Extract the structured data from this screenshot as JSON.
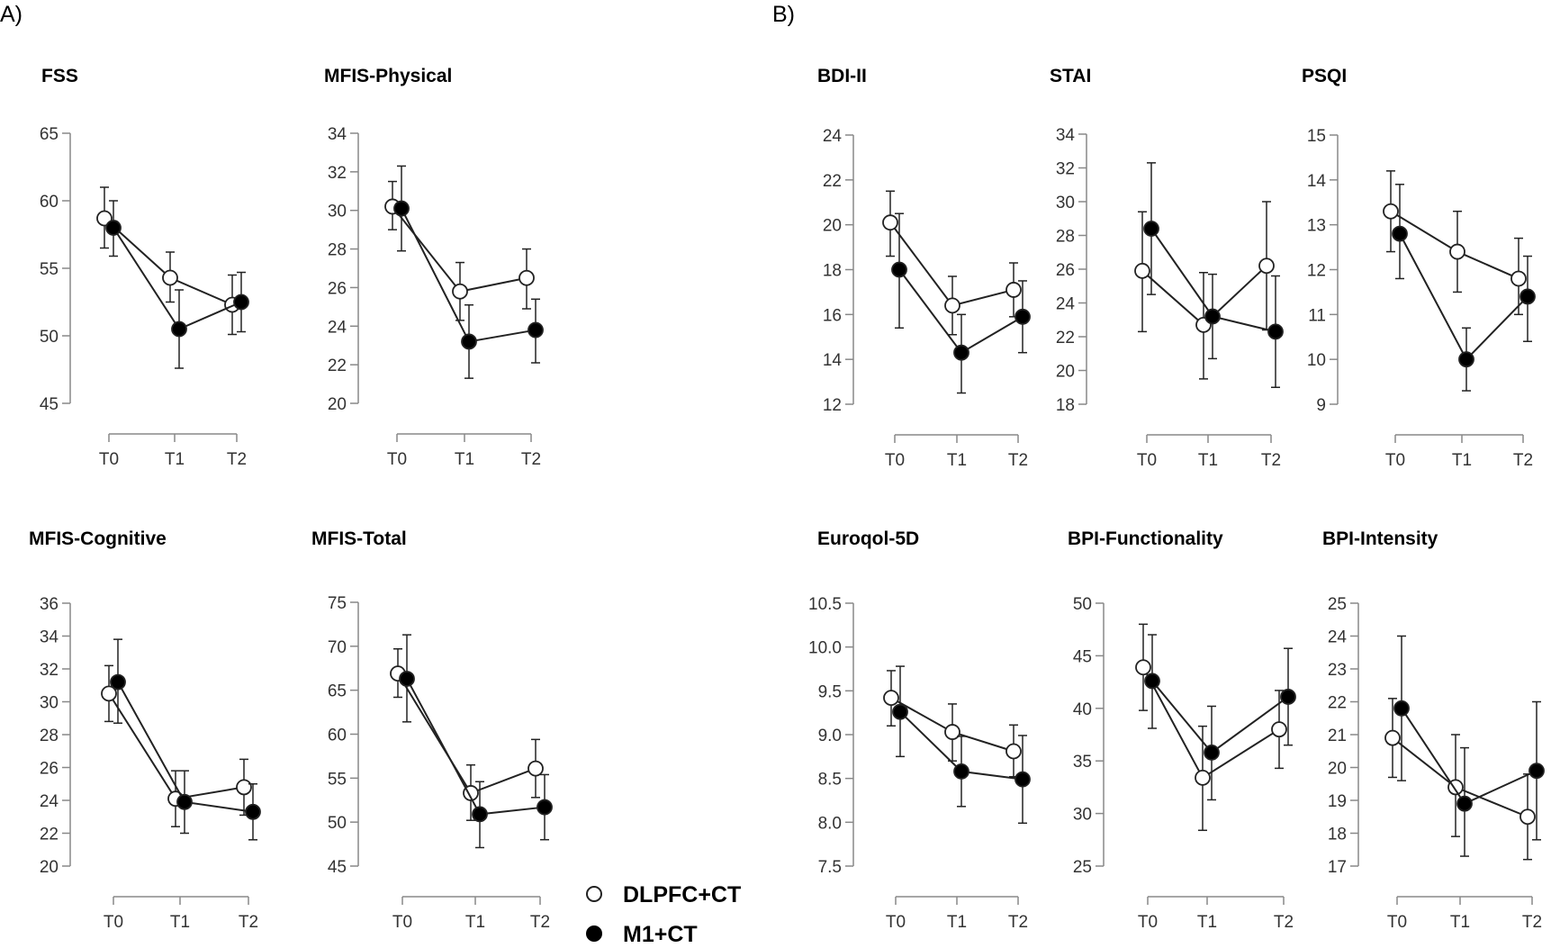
{
  "section_labels": [
    "A)",
    "B)"
  ],
  "legend": [
    {
      "label": "DLPFC+CT",
      "marker": "open-circle"
    },
    {
      "label": "M1+CT",
      "marker": "filled-circle"
    }
  ],
  "colors": {
    "line": "#222222",
    "axis": "#888888",
    "open_fill": "#ffffff",
    "filled_fill": "#000000"
  },
  "chart_data": [
    {
      "type": "line",
      "title": "FSS",
      "categories": [
        "T0",
        "T1",
        "T2"
      ],
      "yticks": [
        45,
        50,
        55,
        60,
        65
      ],
      "ylim": [
        45,
        65
      ],
      "series": [
        {
          "name": "DLPFC+CT",
          "values": [
            58.7,
            54.3,
            52.3
          ],
          "lower": [
            56.5,
            52.5,
            50.1
          ],
          "upper": [
            61.0,
            56.2,
            54.5
          ]
        },
        {
          "name": "M1+CT",
          "values": [
            58.0,
            50.5,
            52.5
          ],
          "lower": [
            55.9,
            47.6,
            50.3
          ],
          "upper": [
            60.0,
            53.4,
            54.7
          ]
        }
      ]
    },
    {
      "type": "line",
      "title": "MFIS-Physical",
      "categories": [
        "T0",
        "T1",
        "T2"
      ],
      "yticks": [
        20,
        22,
        24,
        26,
        28,
        30,
        32,
        34
      ],
      "ylim": [
        20,
        34
      ],
      "series": [
        {
          "name": "DLPFC+CT",
          "values": [
            30.2,
            25.8,
            26.5
          ],
          "lower": [
            29.0,
            24.3,
            24.9
          ],
          "upper": [
            31.5,
            27.3,
            28.0
          ]
        },
        {
          "name": "M1+CT",
          "values": [
            30.1,
            23.2,
            23.8
          ],
          "lower": [
            27.9,
            21.3,
            22.1
          ],
          "upper": [
            32.3,
            25.1,
            25.4
          ]
        }
      ]
    },
    {
      "type": "line",
      "title": "BDI-II",
      "categories": [
        "T0",
        "T1",
        "T2"
      ],
      "yticks": [
        12,
        14,
        16,
        18,
        20,
        22,
        24
      ],
      "ylim": [
        12,
        24
      ],
      "series": [
        {
          "name": "DLPFC+CT",
          "values": [
            20.1,
            16.4,
            17.1
          ],
          "lower": [
            18.6,
            15.1,
            15.9
          ],
          "upper": [
            21.5,
            17.7,
            18.3
          ]
        },
        {
          "name": "M1+CT",
          "values": [
            18.0,
            14.3,
            15.9
          ],
          "lower": [
            15.4,
            12.5,
            14.3
          ],
          "upper": [
            20.5,
            16.0,
            17.5
          ]
        }
      ]
    },
    {
      "type": "line",
      "title": "STAI",
      "categories": [
        "T0",
        "T1",
        "T2"
      ],
      "yticks": [
        18,
        20,
        22,
        24,
        26,
        28,
        30,
        32,
        34
      ],
      "ylim": [
        18,
        34
      ],
      "series": [
        {
          "name": "DLPFC+CT",
          "values": [
            25.9,
            22.7,
            26.2
          ],
          "lower": [
            22.3,
            19.5,
            22.4
          ],
          "upper": [
            29.4,
            25.8,
            30.0
          ]
        },
        {
          "name": "M1+CT",
          "values": [
            28.4,
            23.2,
            22.3
          ],
          "lower": [
            24.5,
            20.7,
            19.0
          ],
          "upper": [
            32.3,
            25.7,
            25.6
          ]
        }
      ]
    },
    {
      "type": "line",
      "title": "PSQI",
      "categories": [
        "T0",
        "T1",
        "T2"
      ],
      "yticks": [
        9,
        10,
        11,
        12,
        13,
        14,
        15
      ],
      "ylim": [
        9,
        15
      ],
      "series": [
        {
          "name": "DLPFC+CT",
          "values": [
            13.3,
            12.4,
            11.8
          ],
          "lower": [
            12.4,
            11.5,
            11.0
          ],
          "upper": [
            14.2,
            13.3,
            12.7
          ]
        },
        {
          "name": "M1+CT",
          "values": [
            12.8,
            10.0,
            11.4
          ],
          "lower": [
            11.8,
            9.3,
            10.4
          ],
          "upper": [
            13.9,
            10.7,
            12.3
          ]
        }
      ]
    },
    {
      "type": "line",
      "title": "MFIS-Cognitive",
      "categories": [
        "T0",
        "T1",
        "T2"
      ],
      "yticks": [
        20,
        22,
        24,
        26,
        28,
        30,
        32,
        34,
        36
      ],
      "ylim": [
        20,
        36
      ],
      "series": [
        {
          "name": "DLPFC+CT",
          "values": [
            30.5,
            24.1,
            24.8
          ],
          "lower": [
            28.8,
            22.4,
            23.1
          ],
          "upper": [
            32.2,
            25.8,
            26.5
          ]
        },
        {
          "name": "M1+CT",
          "values": [
            31.2,
            23.9,
            23.3
          ],
          "lower": [
            28.7,
            22.0,
            21.6
          ],
          "upper": [
            33.8,
            25.8,
            25.0
          ]
        }
      ]
    },
    {
      "type": "line",
      "title": "MFIS-Total",
      "categories": [
        "T0",
        "T1",
        "T2"
      ],
      "yticks": [
        45,
        50,
        55,
        60,
        65,
        70,
        75
      ],
      "ylim": [
        45,
        75
      ],
      "series": [
        {
          "name": "DLPFC+CT",
          "values": [
            66.9,
            53.3,
            56.1
          ],
          "lower": [
            64.2,
            50.2,
            52.8
          ],
          "upper": [
            69.7,
            56.5,
            59.4
          ]
        },
        {
          "name": "M1+CT",
          "values": [
            66.3,
            50.9,
            51.7
          ],
          "lower": [
            61.4,
            47.1,
            48.0
          ],
          "upper": [
            71.3,
            54.6,
            55.4
          ]
        }
      ]
    },
    {
      "type": "line",
      "title": "Euroqol-5D",
      "categories": [
        "T0",
        "T1",
        "T2"
      ],
      "yticks": [
        7.5,
        8.0,
        8.5,
        9.0,
        9.5,
        10.0,
        10.5
      ],
      "ylim": [
        7.5,
        10.5
      ],
      "series": [
        {
          "name": "DLPFC+CT",
          "values": [
            9.42,
            9.03,
            8.81
          ],
          "lower": [
            9.1,
            8.7,
            8.52
          ],
          "upper": [
            9.73,
            9.35,
            9.11
          ]
        },
        {
          "name": "M1+CT",
          "values": [
            9.26,
            8.58,
            8.49
          ],
          "lower": [
            8.75,
            8.18,
            7.99
          ],
          "upper": [
            9.78,
            8.98,
            8.99
          ]
        }
      ]
    },
    {
      "type": "line",
      "title": "BPI-Functionality",
      "categories": [
        "T0",
        "T1",
        "T2"
      ],
      "yticks": [
        25,
        30,
        35,
        40,
        45,
        50
      ],
      "ylim": [
        25,
        50
      ],
      "series": [
        {
          "name": "DLPFC+CT",
          "values": [
            43.9,
            33.4,
            38.0
          ],
          "lower": [
            39.8,
            28.4,
            34.3
          ],
          "upper": [
            48.0,
            38.3,
            41.7
          ]
        },
        {
          "name": "M1+CT",
          "values": [
            42.6,
            35.8,
            41.1
          ],
          "lower": [
            38.1,
            31.3,
            36.5
          ],
          "upper": [
            47.0,
            40.2,
            45.7
          ]
        }
      ]
    },
    {
      "type": "line",
      "title": "BPI-Intensity",
      "categories": [
        "T0",
        "T1",
        "T2"
      ],
      "yticks": [
        17,
        18,
        19,
        20,
        21,
        22,
        23,
        24,
        25
      ],
      "ylim": [
        17,
        25
      ],
      "series": [
        {
          "name": "DLPFC+CT",
          "values": [
            20.9,
            19.4,
            18.5
          ],
          "lower": [
            19.7,
            17.9,
            17.2
          ],
          "upper": [
            22.1,
            21.0,
            19.8
          ]
        },
        {
          "name": "M1+CT",
          "values": [
            21.8,
            18.9,
            19.9
          ],
          "lower": [
            19.6,
            17.3,
            17.8
          ],
          "upper": [
            24.0,
            20.6,
            22.0
          ]
        }
      ]
    }
  ]
}
